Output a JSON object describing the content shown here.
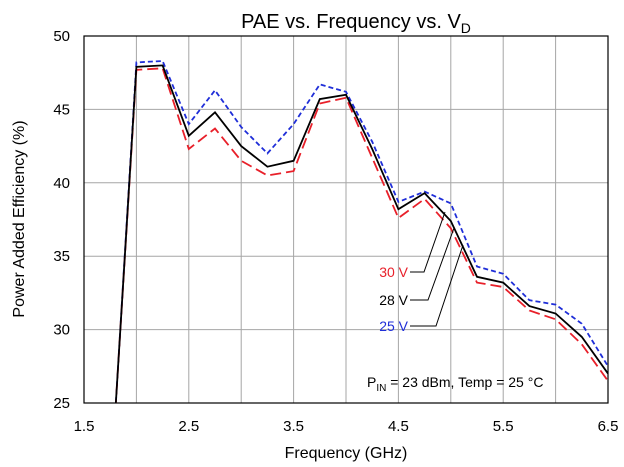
{
  "chart_data": {
    "type": "line",
    "title": {
      "main": "PAE vs. Frequency vs. V",
      "sub": "D"
    },
    "xlabel": "Frequency (GHz)",
    "ylabel": "Power Added Efficiency (%)",
    "xlim": [
      1.5,
      6.5
    ],
    "ylim": [
      25,
      50
    ],
    "x_ticks": [
      "1.5",
      "2.5",
      "3.5",
      "4.5",
      "5.5",
      "6.5"
    ],
    "y_ticks": [
      "25",
      "30",
      "35",
      "40",
      "45",
      "50"
    ],
    "grid": true,
    "series": [
      {
        "name": "30 V",
        "color": "#e8202a",
        "dash": "long-dash",
        "x": [
          1.8,
          2.0,
          2.25,
          2.5,
          2.75,
          3.0,
          3.25,
          3.5,
          3.75,
          4.0,
          4.25,
          4.5,
          4.75,
          5.0,
          5.25,
          5.5,
          5.75,
          6.0,
          6.25,
          6.5
        ],
        "y": [
          24.5,
          47.7,
          47.8,
          42.3,
          43.7,
          41.5,
          40.5,
          40.8,
          45.4,
          45.8,
          41.7,
          37.6,
          38.9,
          36.9,
          33.2,
          32.9,
          31.3,
          30.7,
          29.0,
          26.5
        ]
      },
      {
        "name": "28 V",
        "color": "#000000",
        "dash": "solid",
        "x": [
          1.8,
          2.0,
          2.25,
          2.5,
          2.75,
          3.0,
          3.25,
          3.5,
          3.75,
          4.0,
          4.25,
          4.5,
          4.75,
          5.0,
          5.25,
          5.5,
          5.75,
          6.0,
          6.25,
          6.5
        ],
        "y": [
          24.5,
          47.9,
          48.0,
          43.2,
          44.8,
          42.5,
          41.1,
          41.5,
          45.7,
          46.0,
          42.3,
          38.2,
          39.3,
          37.4,
          33.6,
          33.2,
          31.6,
          31.1,
          29.5,
          27.0
        ]
      },
      {
        "name": "25 V",
        "color": "#1f2ed8",
        "dash": "short-dash",
        "x": [
          1.8,
          2.0,
          2.25,
          2.5,
          2.75,
          3.0,
          3.25,
          3.5,
          3.75,
          4.0,
          4.25,
          4.5,
          4.75,
          5.0,
          5.25,
          5.5,
          5.75,
          6.0,
          6.25,
          6.5
        ],
        "y": [
          24.5,
          48.2,
          48.3,
          44.0,
          46.3,
          43.8,
          42.0,
          44.0,
          46.7,
          46.2,
          42.8,
          38.7,
          39.4,
          38.6,
          34.3,
          33.8,
          32.0,
          31.7,
          30.4,
          27.5
        ]
      }
    ],
    "annotations": {
      "conditions_pin": "P",
      "conditions_pin_sub": "IN",
      "conditions_rest": " = 23 dBm, Temp = 25 °C"
    }
  }
}
